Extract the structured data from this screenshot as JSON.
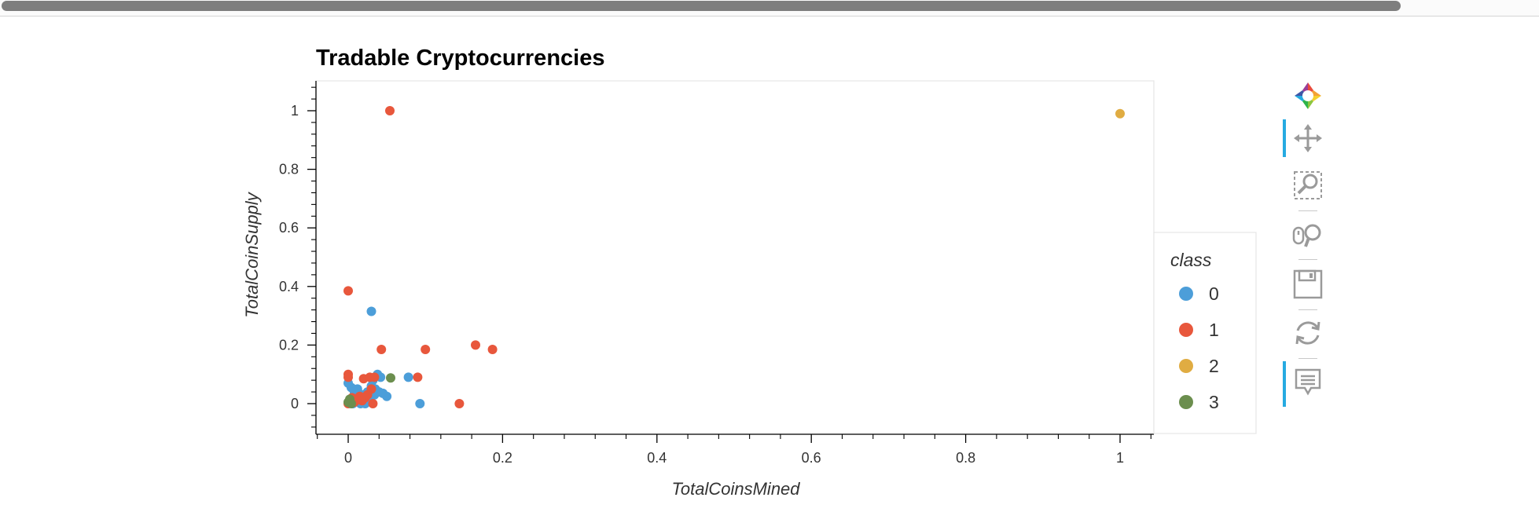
{
  "colors": {
    "class_0": "#4c9ed9",
    "class_1": "#e8573c",
    "class_2": "#e0ac42",
    "class_3": "#6b8e4e"
  },
  "toolbar": {
    "tools": [
      {
        "name": "bokeh-logo-icon",
        "active": false
      },
      {
        "name": "pan-icon",
        "active": true
      },
      {
        "name": "box-zoom-icon",
        "active": false
      },
      {
        "name": "wheel-zoom-icon",
        "active": false
      },
      {
        "name": "save-icon",
        "active": false
      },
      {
        "name": "reset-icon",
        "active": false
      },
      {
        "name": "hover-icon",
        "active": true
      }
    ]
  },
  "chart_data": {
    "type": "scatter",
    "title": "Tradable Cryptocurrencies",
    "xlabel": "TotalCoinsMined",
    "ylabel": "TotalCoinSupply",
    "xlim": [
      -0.04,
      1.04
    ],
    "ylim": [
      -0.095,
      1.1
    ],
    "xticks": [
      0,
      0.2,
      0.4,
      0.6,
      0.8,
      1
    ],
    "xtick_labels": [
      "0",
      "0.2",
      "0.4",
      "0.6",
      "0.8",
      "1"
    ],
    "yticks": [
      0,
      0.2,
      0.4,
      0.6,
      0.8,
      1
    ],
    "ytick_labels": [
      "0",
      "0.2",
      "0.4",
      "0.6",
      "0.8",
      "1"
    ],
    "grid": false,
    "legend_title": "class",
    "legend_position": "right",
    "series": [
      {
        "name": "0",
        "points": [
          [
            0.0,
            0.07
          ],
          [
            0.004,
            0.055
          ],
          [
            0.008,
            0.04
          ],
          [
            0.012,
            0.05
          ],
          [
            0.015,
            0.02
          ],
          [
            0.018,
            0.03
          ],
          [
            0.02,
            0.01
          ],
          [
            0.022,
            0.0
          ],
          [
            0.025,
            0.04
          ],
          [
            0.028,
            0.02
          ],
          [
            0.03,
            0.06
          ],
          [
            0.03,
            0.315
          ],
          [
            0.032,
            0.08
          ],
          [
            0.034,
            0.03
          ],
          [
            0.035,
            0.05
          ],
          [
            0.038,
            0.1
          ],
          [
            0.04,
            0.04
          ],
          [
            0.042,
            0.09
          ],
          [
            0.045,
            0.035
          ],
          [
            0.05,
            0.025
          ],
          [
            0.078,
            0.09
          ],
          [
            0.093,
            0.0
          ],
          [
            0.006,
            0.0
          ],
          [
            0.01,
            0.015
          ],
          [
            0.016,
            0.0
          ]
        ]
      },
      {
        "name": "1",
        "points": [
          [
            0.0,
            0.385
          ],
          [
            0.0,
            0.1
          ],
          [
            0.0,
            0.09
          ],
          [
            0.0,
            0.0
          ],
          [
            0.002,
            0.01
          ],
          [
            0.005,
            0.02
          ],
          [
            0.008,
            0.005
          ],
          [
            0.012,
            0.015
          ],
          [
            0.015,
            0.025
          ],
          [
            0.018,
            0.01
          ],
          [
            0.02,
            0.085
          ],
          [
            0.022,
            0.02
          ],
          [
            0.025,
            0.03
          ],
          [
            0.028,
            0.09
          ],
          [
            0.03,
            0.05
          ],
          [
            0.032,
            0.0
          ],
          [
            0.034,
            0.09
          ],
          [
            0.043,
            0.185
          ],
          [
            0.054,
            1.0
          ],
          [
            0.09,
            0.09
          ],
          [
            0.1,
            0.185
          ],
          [
            0.144,
            0.0
          ],
          [
            0.165,
            0.2
          ],
          [
            0.187,
            0.185
          ]
        ]
      },
      {
        "name": "2",
        "points": [
          [
            1.0,
            0.99
          ]
        ]
      },
      {
        "name": "3",
        "points": [
          [
            0.0,
            0.005
          ],
          [
            0.002,
            0.015
          ],
          [
            0.004,
            0.0
          ],
          [
            0.055,
            0.088
          ]
        ]
      }
    ]
  }
}
